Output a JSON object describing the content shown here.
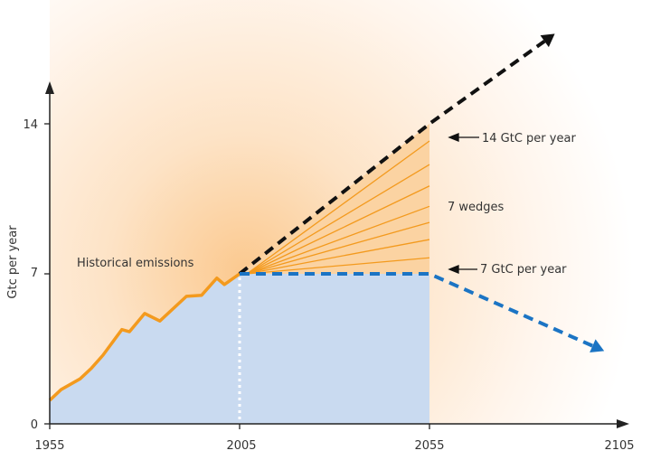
{
  "chart_data": {
    "type": "line",
    "title": "",
    "xlabel": "",
    "ylabel": "Gtc per year",
    "xlim": [
      1955,
      2105
    ],
    "ylim": [
      0,
      14
    ],
    "x_ticks": [
      "1955",
      "2005",
      "2055",
      "2105"
    ],
    "y_ticks": [
      "0",
      "7",
      "14"
    ],
    "grid": false,
    "series": [
      {
        "name": "Historical emissions",
        "color": "#f39a1e",
        "style": "solid",
        "x": [
          1955,
          1958,
          1963,
          1966,
          1969,
          1974,
          1976,
          1980,
          1984,
          1991,
          1995,
          1999,
          2001,
          2005
        ],
        "y": [
          1.1,
          1.6,
          2.1,
          2.6,
          3.2,
          4.4,
          4.3,
          5.15,
          4.8,
          5.95,
          6.0,
          6.8,
          6.5,
          7.0
        ]
      },
      {
        "color": "#111111",
        "style": "dashed",
        "arrow": true,
        "x": [
          2005,
          2055,
          2088
        ],
        "y": [
          7,
          14,
          18.2
        ]
      },
      {
        "color": "#1b74c4",
        "style": "dashed",
        "arrow": true,
        "x": [
          2005,
          2055,
          2101
        ],
        "y": [
          7,
          7,
          3.4
        ]
      }
    ],
    "wedge_lines_2055": [
      13.2,
      12.1,
      11.1,
      10.15,
      9.4,
      8.6,
      7.75
    ],
    "annotations": {
      "historical": "Historical emissions",
      "top": "14 GtC per year",
      "wedges": "7 wedges",
      "bottom": "7 GtC per year"
    },
    "colors": {
      "stabilization_fill": "#c9daf0",
      "wedge_fill": "#fbd3a2",
      "background_glow": "#fbc98f"
    }
  }
}
